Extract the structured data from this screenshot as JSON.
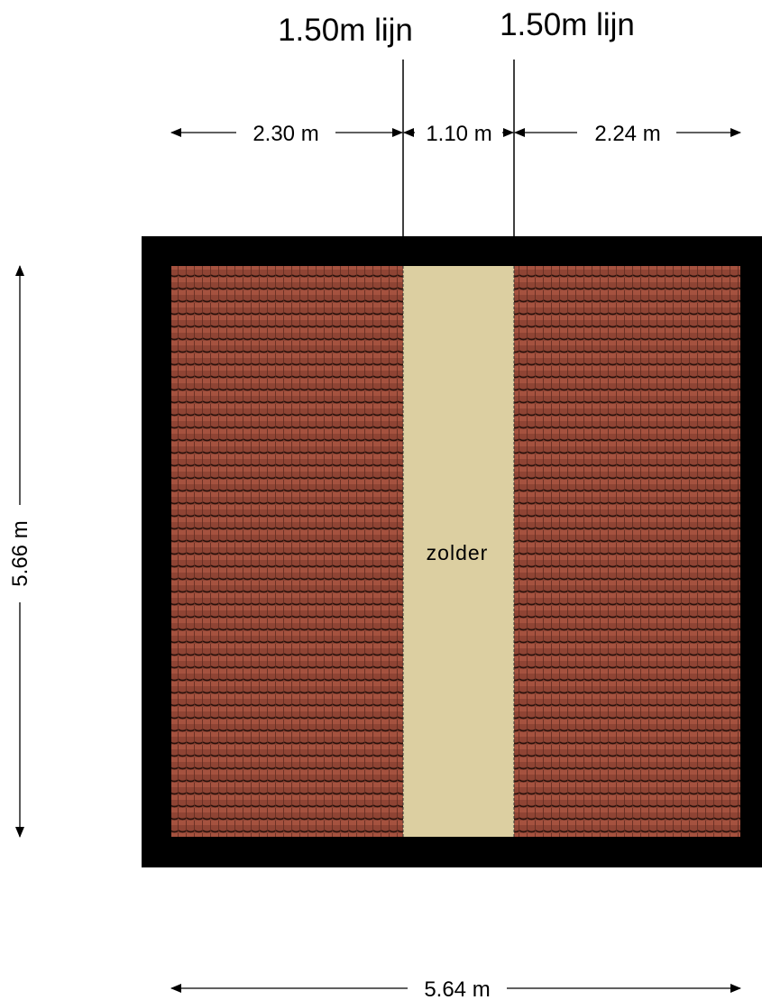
{
  "lines": {
    "left_label": "1.50m lijn",
    "right_label": "1.50m lijn"
  },
  "dimensions": {
    "top_left": "2.30 m",
    "top_middle": "1.10 m",
    "top_right": "2.24 m",
    "left_height": "5.66 m",
    "bottom_width": "5.64 m"
  },
  "room": {
    "name": "zolder"
  },
  "colors": {
    "wall": "#000000",
    "roof_tile": "#8f4434",
    "roof_tile_shadow": "#3a1a12",
    "floor": "#dccfa1"
  }
}
